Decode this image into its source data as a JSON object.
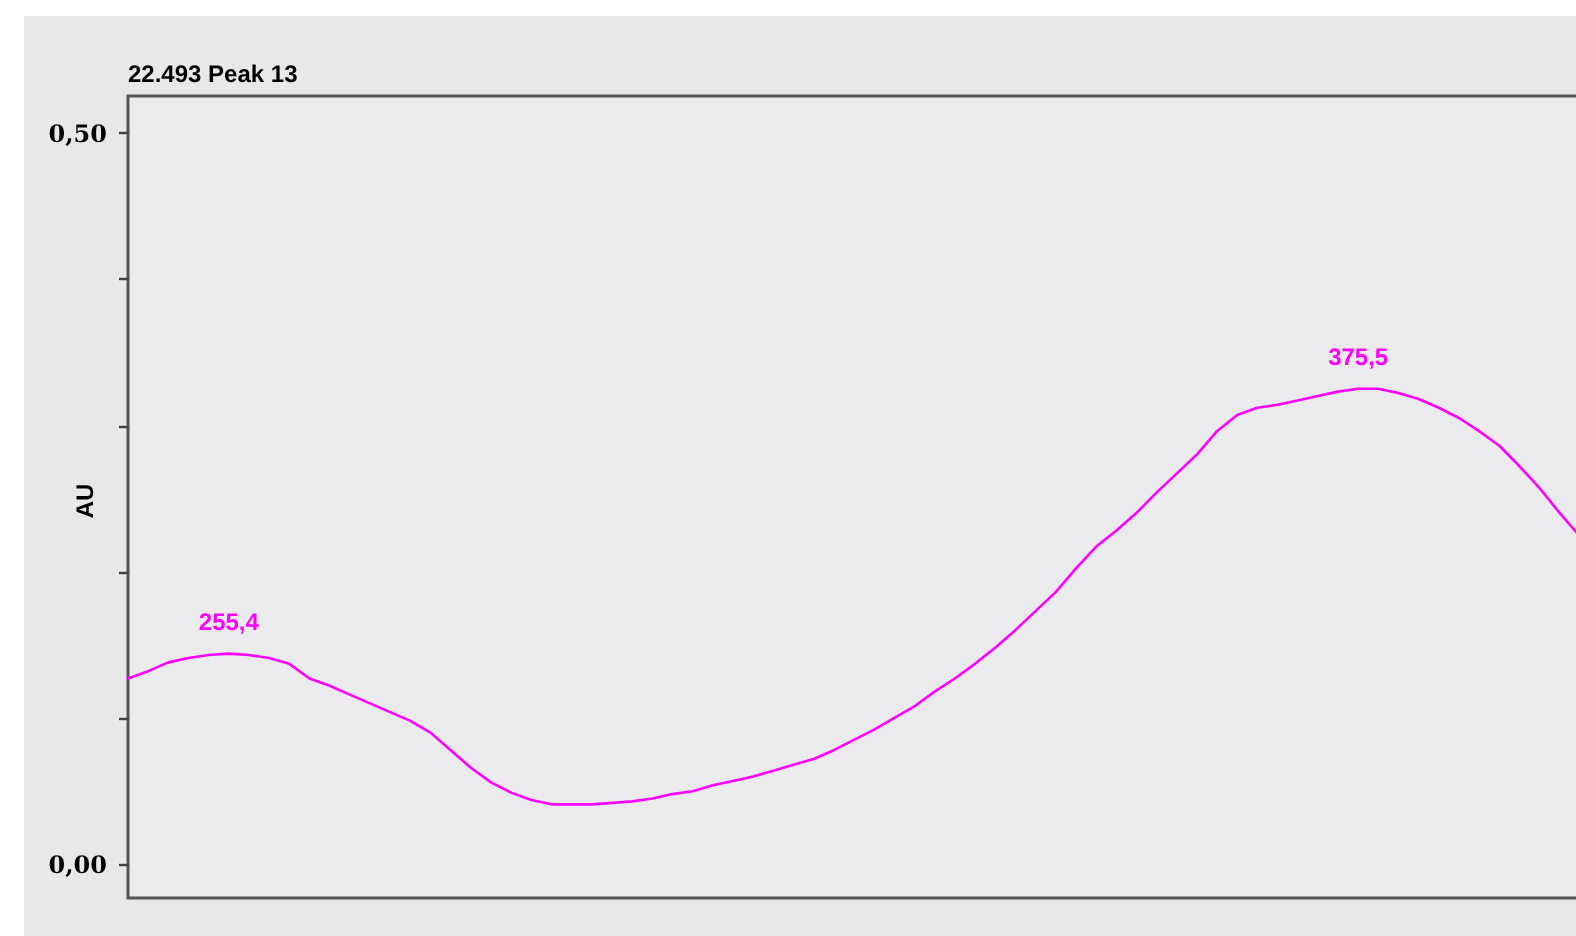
{
  "chart_data": {
    "type": "line",
    "title": "22.493 Peak 13",
    "ylabel": "AU",
    "categories": [
      null,
      null,
      null,
      null,
      null,
      null,
      null,
      null,
      null,
      null,
      null,
      null,
      null,
      null,
      null,
      null,
      null,
      null,
      null,
      null,
      null,
      null,
      null,
      null,
      null,
      null,
      null,
      null,
      null,
      null,
      null,
      null,
      null,
      null,
      null,
      null,
      null,
      null,
      null,
      null,
      null,
      null,
      null,
      null,
      null,
      null,
      null,
      null,
      null,
      null,
      null,
      null,
      null,
      null,
      null,
      null,
      null,
      null,
      null,
      null,
      null,
      null,
      null,
      null,
      null,
      null,
      null,
      null,
      null,
      null,
      null,
      null,
      null
    ],
    "values": [
      0.127,
      0.132,
      0.138,
      0.141,
      0.143,
      0.144,
      0.143,
      0.141,
      0.137,
      0.127,
      0.122,
      0.116,
      0.11,
      0.104,
      0.098,
      0.09,
      0.078,
      0.066,
      0.056,
      0.049,
      0.044,
      0.041,
      0.041,
      0.041,
      0.042,
      0.043,
      0.045,
      0.048,
      0.05,
      0.054,
      0.057,
      0.06,
      0.064,
      0.068,
      0.072,
      0.078,
      0.085,
      0.092,
      0.1,
      0.108,
      0.118,
      0.127,
      0.137,
      0.148,
      0.16,
      0.173,
      0.186,
      0.202,
      0.217,
      0.228,
      0.24,
      0.254,
      0.267,
      0.28,
      0.296,
      0.307,
      0.312,
      0.314,
      0.317,
      0.32,
      0.323,
      0.325,
      0.325,
      0.322,
      0.318,
      0.312,
      0.305,
      0.296,
      0.286,
      0.272,
      0.257,
      0.24,
      0.224
    ],
    "color": "#ff00ff",
    "annotations": [
      {
        "text": "255,4",
        "y": 0.144
      },
      {
        "text": "375,5",
        "y": 0.325
      }
    ],
    "ylim": [
      -0.023,
      0.525
    ],
    "yticks": [
      {
        "value": 0,
        "label": "0,00"
      },
      {
        "value": 0.1,
        "label": null
      },
      {
        "value": 0.2,
        "label": null
      },
      {
        "value": 0.3,
        "label": null
      },
      {
        "value": 0.4,
        "label": null
      },
      {
        "value": 0.5,
        "label": "0,50"
      }
    ],
    "tick_labels": "y"
  }
}
